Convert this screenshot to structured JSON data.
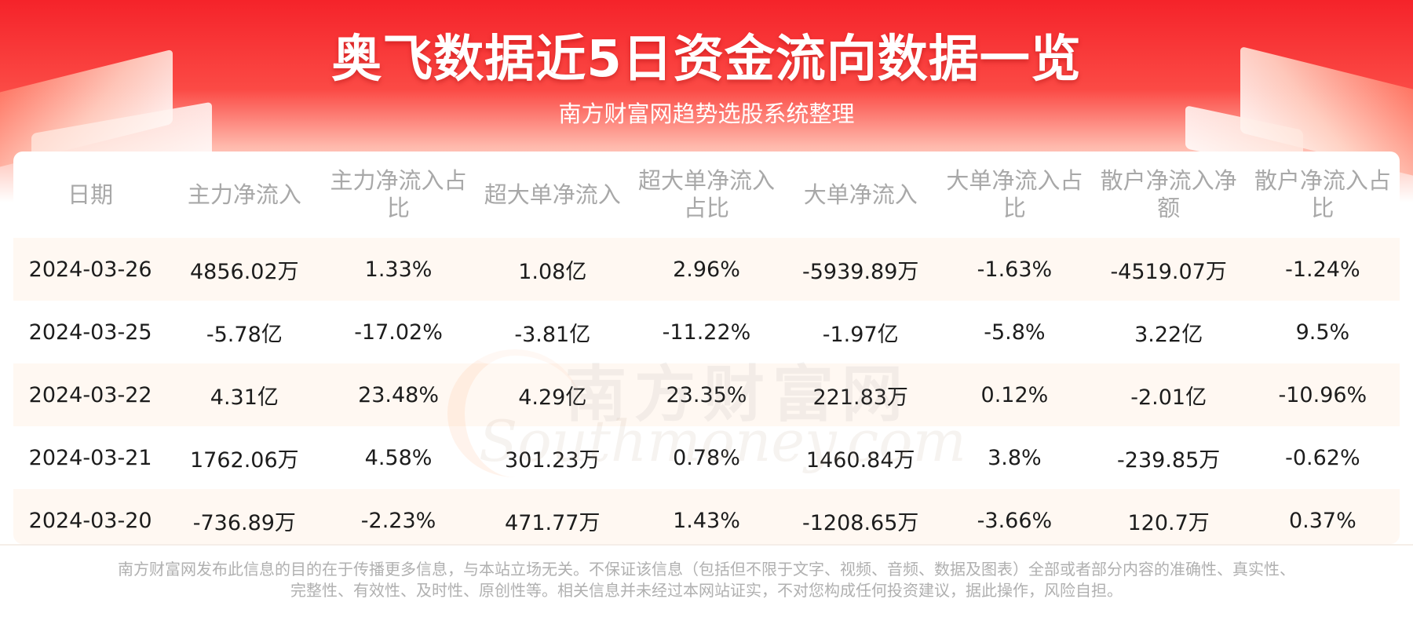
{
  "header": {
    "title": "奥飞数据近5日资金流向数据一览",
    "subtitle": "南方财富网趋势选股系统整理"
  },
  "watermark": {
    "cn": "南方财富网",
    "en": "Southmoney.com"
  },
  "table": {
    "columns": [
      "日期",
      "主力净流入",
      "主力净流入占比",
      "超大单净流入",
      "超大单净流入占比",
      "大单净流入",
      "大单净流入占比",
      "散户净流入净额",
      "散户净流入占比"
    ],
    "rows": [
      [
        "2024-03-26",
        "4856.02万",
        "1.33%",
        "1.08亿",
        "2.96%",
        "-5939.89万",
        "-1.63%",
        "-4519.07万",
        "-1.24%"
      ],
      [
        "2024-03-25",
        "-5.78亿",
        "-17.02%",
        "-3.81亿",
        "-11.22%",
        "-1.97亿",
        "-5.8%",
        "3.22亿",
        "9.5%"
      ],
      [
        "2024-03-22",
        "4.31亿",
        "23.48%",
        "4.29亿",
        "23.35%",
        "221.83万",
        "0.12%",
        "-2.01亿",
        "-10.96%"
      ],
      [
        "2024-03-21",
        "1762.06万",
        "4.58%",
        "301.23万",
        "0.78%",
        "1460.84万",
        "3.8%",
        "-239.85万",
        "-0.62%"
      ],
      [
        "2024-03-20",
        "-736.89万",
        "-2.23%",
        "471.77万",
        "1.43%",
        "-1208.65万",
        "-3.66%",
        "120.7万",
        "0.37%"
      ]
    ]
  },
  "footer": {
    "disclaimer_line1": "南方财富网发布此信息的目的在于传播更多信息，与本站立场无关。不保证该信息（包括但不限于文字、视频、音频、数据及图表）全部或者部分内容的准确性、真实性、",
    "disclaimer_line2": "完整性、有效性、及时性、原创性等。相关信息并未经过本网站证实，不对您构成任何投资建议，据此操作，风险自担。"
  },
  "colors": {
    "header_red": "#f5232a",
    "row_alt": "#fff8f2",
    "header_text": "#a8a8a8",
    "cell_text": "#1c1c1c"
  }
}
